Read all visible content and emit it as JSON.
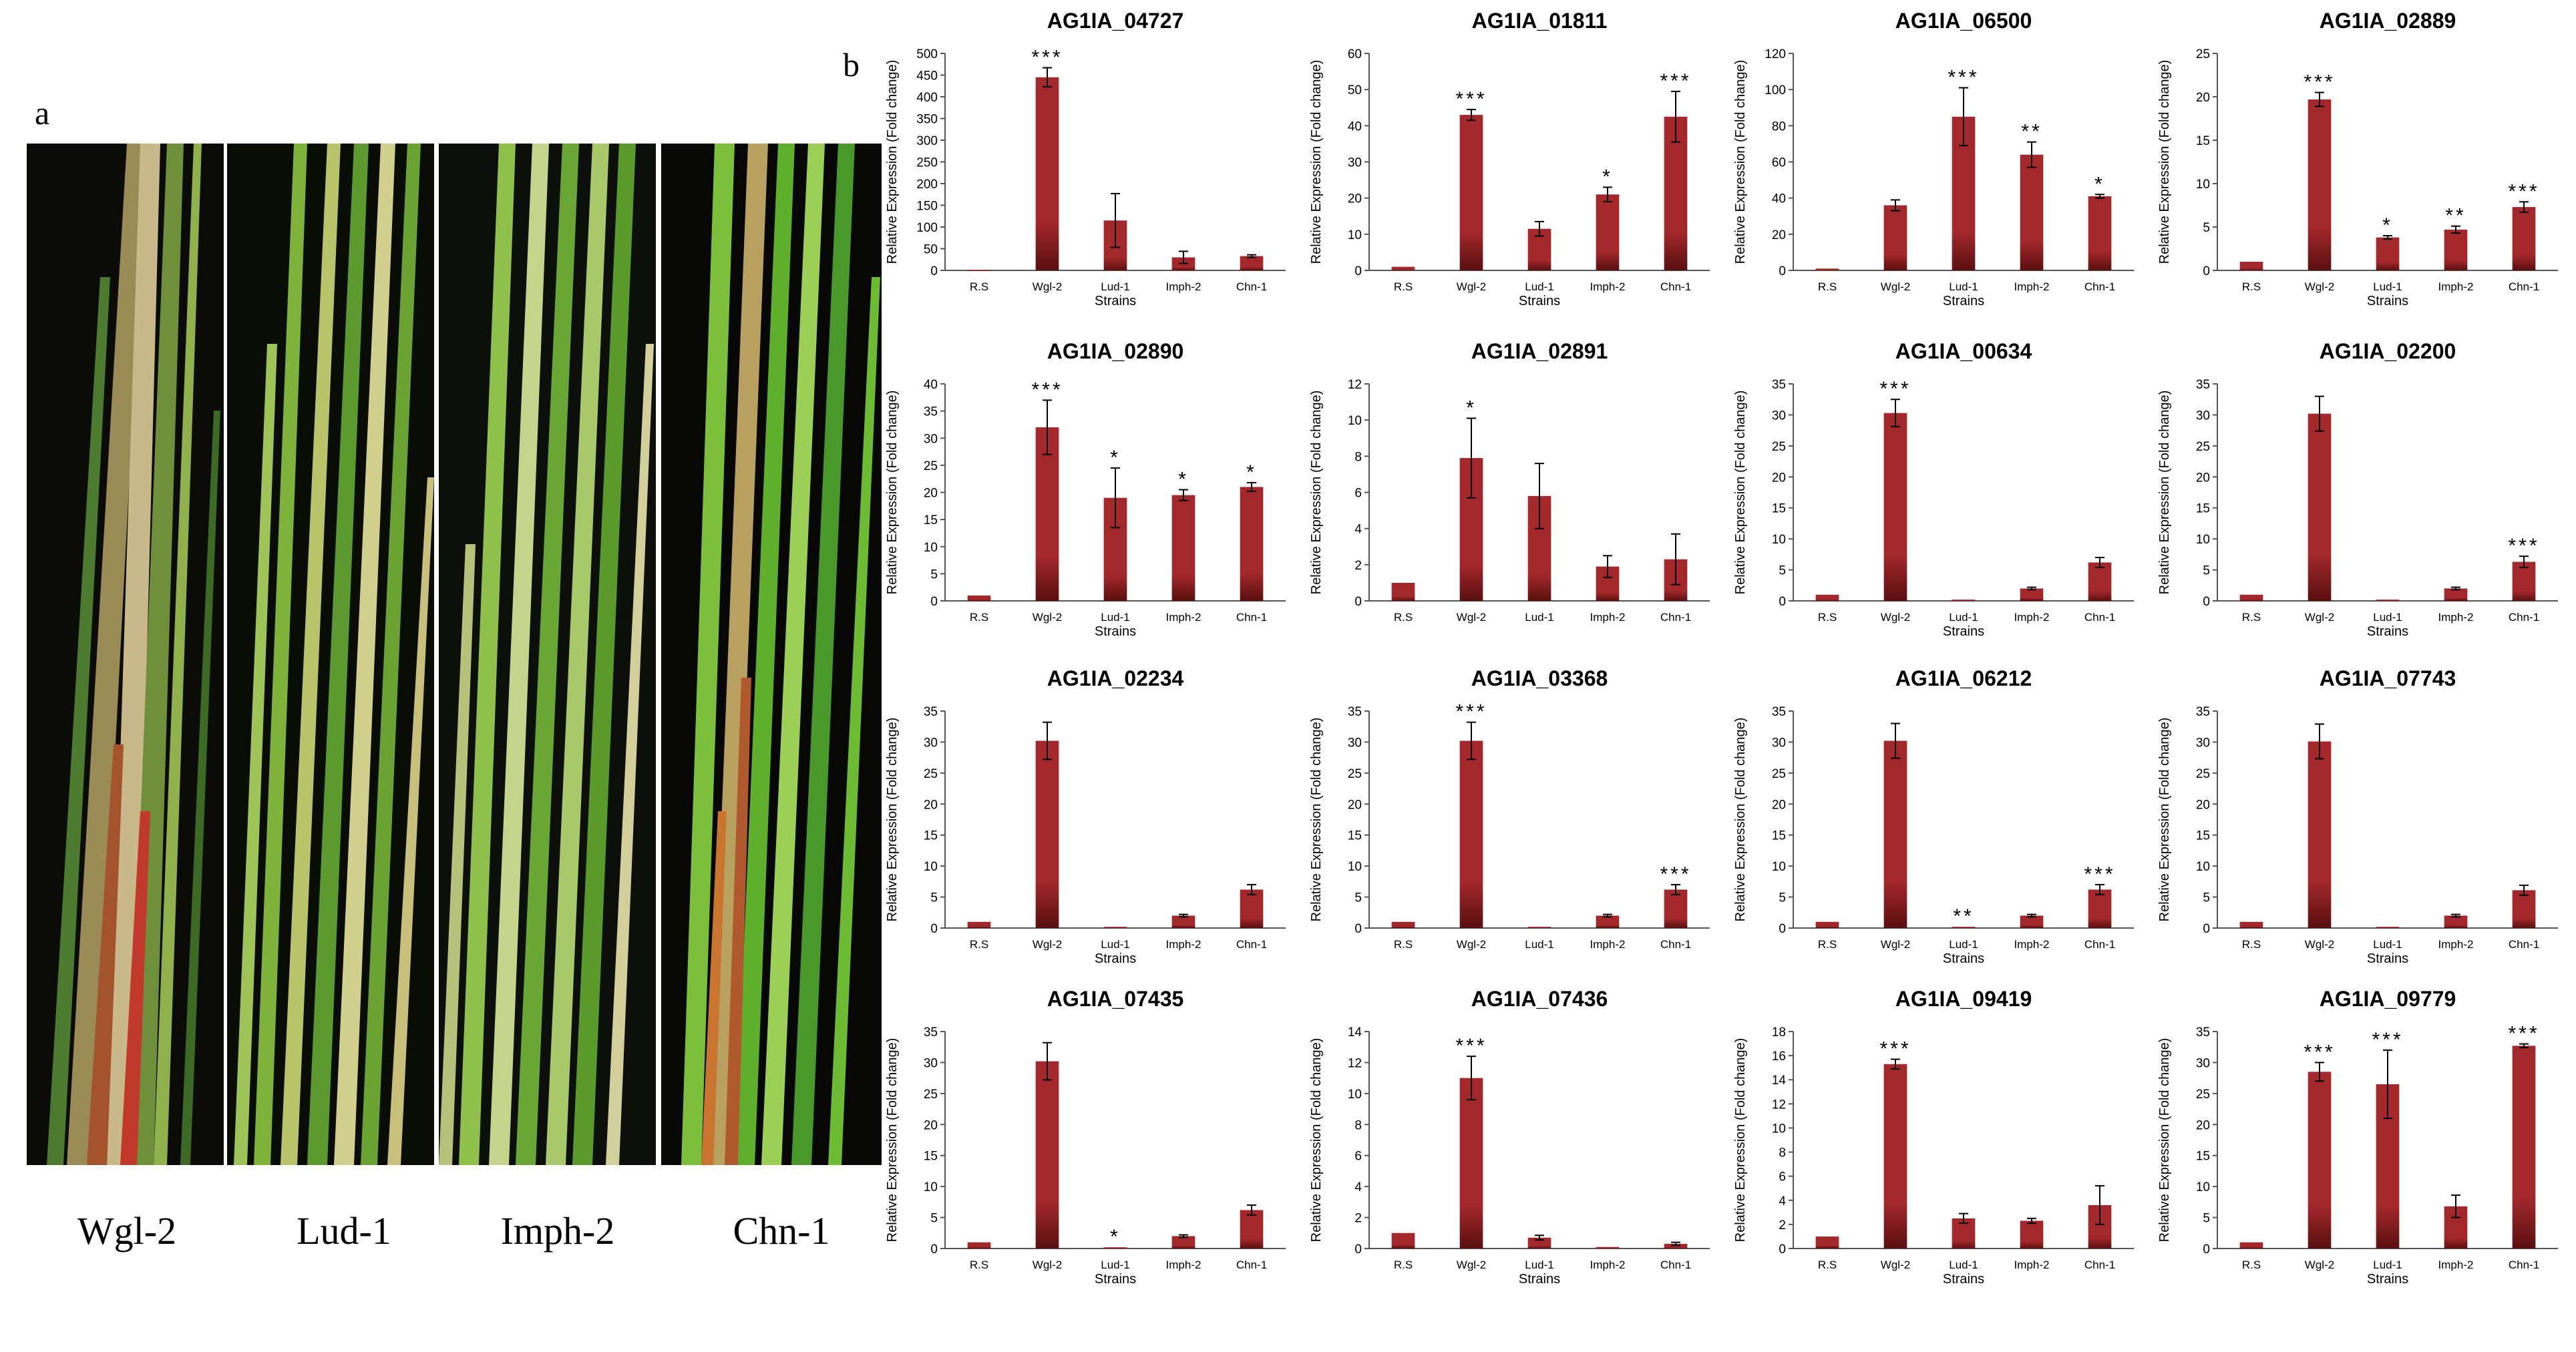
{
  "panel_labels": {
    "a": "a",
    "b": "b"
  },
  "photo_panel": {
    "labels": [
      "Wgl-2",
      "Lud-1",
      "Imph-2",
      "Chn-1"
    ]
  },
  "chart_common": {
    "ylabel": "Relative Expression (Fold change)",
    "xlabel": "Strains",
    "categories": [
      "R.S",
      "Wgl-2",
      "Lud-1",
      "Imph-2",
      "Chn-1"
    ],
    "bar_color": "#a3282b"
  },
  "chart_data": [
    {
      "type": "bar",
      "title": "AG1IA_04727",
      "ylim": [
        0,
        500
      ],
      "yticks": [
        0,
        50,
        100,
        150,
        200,
        250,
        300,
        350,
        400,
        450,
        500
      ],
      "values": [
        1,
        445,
        115,
        30,
        33
      ],
      "errors": [
        0,
        22,
        62,
        14,
        3
      ],
      "sig": [
        "",
        "***",
        "",
        "",
        ""
      ],
      "xlabel": "Strains"
    },
    {
      "type": "bar",
      "title": "AG1IA_01811",
      "ylim": [
        0,
        60
      ],
      "yticks": [
        0,
        10,
        20,
        30,
        40,
        50,
        60
      ],
      "values": [
        1,
        43,
        11.5,
        21,
        42.5
      ],
      "errors": [
        0,
        1.5,
        2,
        2,
        7
      ],
      "sig": [
        "",
        "***",
        "",
        "*",
        "***"
      ],
      "xlabel": "Strains"
    },
    {
      "type": "bar",
      "title": "AG1IA_06500",
      "ylim": [
        0,
        120
      ],
      "yticks": [
        0,
        20,
        40,
        60,
        80,
        100,
        120
      ],
      "values": [
        1,
        36,
        85,
        64,
        41
      ],
      "errors": [
        0,
        3,
        16,
        7,
        1
      ],
      "sig": [
        "",
        "",
        "***",
        "**",
        "*"
      ],
      "xlabel": "Strains"
    },
    {
      "type": "bar",
      "title": "AG1IA_02889",
      "ylim": [
        0,
        25
      ],
      "yticks": [
        0,
        5,
        10,
        15,
        20,
        25
      ],
      "values": [
        1,
        19.7,
        3.8,
        4.7,
        7.3
      ],
      "errors": [
        0,
        0.8,
        0.2,
        0.4,
        0.6
      ],
      "sig": [
        "",
        "***",
        "*",
        "**",
        "***"
      ],
      "xlabel": "Strains"
    },
    {
      "type": "bar",
      "title": "AG1IA_02890",
      "ylim": [
        0,
        40
      ],
      "yticks": [
        0,
        5,
        10,
        15,
        20,
        25,
        30,
        35,
        40
      ],
      "values": [
        1,
        32,
        19,
        19.5,
        21
      ],
      "errors": [
        0,
        5,
        5.5,
        1,
        0.8
      ],
      "sig": [
        "",
        "***",
        "*",
        "*",
        "*"
      ],
      "xlabel": "Strains"
    },
    {
      "type": "bar",
      "title": "AG1IA_02891",
      "ylim": [
        0,
        12
      ],
      "yticks": [
        0,
        2,
        4,
        6,
        8,
        10,
        12
      ],
      "values": [
        1,
        7.9,
        5.8,
        1.9,
        2.3
      ],
      "errors": [
        0,
        2.2,
        1.8,
        0.6,
        1.4
      ],
      "sig": [
        "",
        "*",
        "",
        "",
        ""
      ],
      "xlabel": ""
    },
    {
      "type": "bar",
      "title": "AG1IA_00634",
      "ylim": [
        0,
        35
      ],
      "yticks": [
        0,
        5,
        10,
        15,
        20,
        25,
        30,
        35
      ],
      "values": [
        1,
        30.3,
        0.2,
        2,
        6.2
      ],
      "errors": [
        0,
        2.2,
        0,
        0.2,
        0.8
      ],
      "sig": [
        "",
        "***",
        "",
        "",
        ""
      ],
      "xlabel": "Strains"
    },
    {
      "type": "bar",
      "title": "AG1IA_02200",
      "ylim": [
        0,
        35
      ],
      "yticks": [
        0,
        5,
        10,
        15,
        20,
        25,
        30,
        35
      ],
      "values": [
        1,
        30.2,
        0.2,
        2,
        6.3
      ],
      "errors": [
        0,
        2.8,
        0,
        0.2,
        0.9
      ],
      "sig": [
        "",
        "",
        "",
        "",
        "***"
      ],
      "xlabel": "Strains"
    },
    {
      "type": "bar",
      "title": "AG1IA_02234",
      "ylim": [
        0,
        35
      ],
      "yticks": [
        0,
        5,
        10,
        15,
        20,
        25,
        30,
        35
      ],
      "values": [
        1,
        30.2,
        0.2,
        2,
        6.2
      ],
      "errors": [
        0,
        3,
        0,
        0.2,
        0.8
      ],
      "sig": [
        "",
        "",
        "",
        "",
        ""
      ],
      "xlabel": "Strains"
    },
    {
      "type": "bar",
      "title": "AG1IA_03368",
      "ylim": [
        0,
        35
      ],
      "yticks": [
        0,
        5,
        10,
        15,
        20,
        25,
        30,
        35
      ],
      "values": [
        1,
        30.2,
        0.2,
        2,
        6.2
      ],
      "errors": [
        0,
        3,
        0,
        0.2,
        0.8
      ],
      "sig": [
        "",
        "***",
        "",
        "",
        "***"
      ],
      "xlabel": ""
    },
    {
      "type": "bar",
      "title": "AG1IA_06212",
      "ylim": [
        0,
        35
      ],
      "yticks": [
        0,
        5,
        10,
        15,
        20,
        25,
        30,
        35
      ],
      "values": [
        1,
        30.2,
        0.2,
        2,
        6.2
      ],
      "errors": [
        0,
        2.8,
        0,
        0.2,
        0.8
      ],
      "sig": [
        "",
        "",
        "**",
        "",
        "***"
      ],
      "xlabel": "Strains"
    },
    {
      "type": "bar",
      "title": "AG1IA_07743",
      "ylim": [
        0,
        35
      ],
      "yticks": [
        0,
        5,
        10,
        15,
        20,
        25,
        30,
        35
      ],
      "values": [
        1,
        30.1,
        0.2,
        2,
        6.1
      ],
      "errors": [
        0,
        2.8,
        0,
        0.2,
        0.8
      ],
      "sig": [
        "",
        "",
        "",
        "",
        ""
      ],
      "xlabel": "Strains"
    },
    {
      "type": "bar",
      "title": "AG1IA_07435",
      "ylim": [
        0,
        35
      ],
      "yticks": [
        0,
        5,
        10,
        15,
        20,
        25,
        30,
        35
      ],
      "values": [
        1,
        30.2,
        0.2,
        2,
        6.2
      ],
      "errors": [
        0,
        3,
        0,
        0.2,
        0.8
      ],
      "sig": [
        "",
        "",
        "*",
        "",
        ""
      ],
      "xlabel": "Strains"
    },
    {
      "type": "bar",
      "title": "AG1IA_07436",
      "ylim": [
        0,
        14
      ],
      "yticks": [
        0,
        2,
        4,
        6,
        8,
        10,
        12,
        14
      ],
      "values": [
        1,
        11,
        0.7,
        0.1,
        0.3
      ],
      "errors": [
        0,
        1.4,
        0.15,
        0,
        0.1
      ],
      "sig": [
        "",
        "***",
        "",
        "",
        ""
      ],
      "xlabel": "Strains"
    },
    {
      "type": "bar",
      "title": "AG1IA_09419",
      "ylim": [
        0,
        18
      ],
      "yticks": [
        0,
        2,
        4,
        6,
        8,
        10,
        12,
        14,
        16,
        18
      ],
      "values": [
        1,
        15.3,
        2.5,
        2.3,
        3.6
      ],
      "errors": [
        0,
        0.4,
        0.4,
        0.2,
        1.6
      ],
      "sig": [
        "",
        "***",
        "",
        "",
        ""
      ],
      "xlabel": "Strains"
    },
    {
      "type": "bar",
      "title": "AG1IA_09779",
      "ylim": [
        0,
        35
      ],
      "yticks": [
        0,
        5,
        10,
        15,
        20,
        25,
        30,
        35
      ],
      "values": [
        1,
        28.5,
        26.5,
        6.8,
        32.7
      ],
      "errors": [
        0,
        1.5,
        5.5,
        1.8,
        0.3
      ],
      "sig": [
        "",
        "***",
        "***",
        "",
        "***"
      ],
      "xlabel": "Strains"
    }
  ]
}
